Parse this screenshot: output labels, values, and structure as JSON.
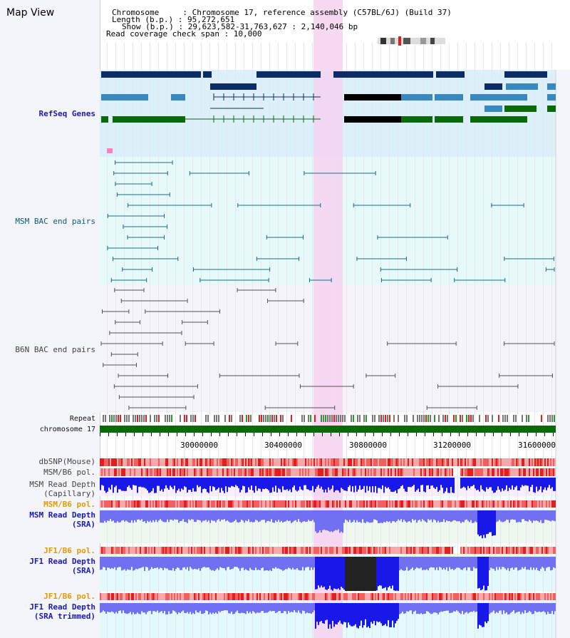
{
  "view": {
    "title": "Map View"
  },
  "info": {
    "chromosome": "Chromosome     : Chromosome 17, reference assembly (C57BL/6J) (Build 37)",
    "length": "Length (b.p.) : 95,272,651",
    "show": "Show (b.p.) : 29,623,582-31,763,627 : 2,140,046 bp",
    "coverage": "Read coverage check span : 10,000"
  },
  "tracks": {
    "refseq": "RefSeq Genes",
    "msm_bac": "MSM BAC end pairs",
    "b6n_bac": "B6N BAC end pairs",
    "repeat": "Repeat",
    "chromosome": "chromosome 17",
    "dbsnp": "dbSNP(Mouse)",
    "msm_pol_1": "MSM/B6 pol.",
    "msm_depth_cap": "MSM Read Depth\n(Capillary)",
    "msm_pol_2": "MSM/B6 pol.",
    "msm_depth_sra": "MSM Read Depth\n(SRA)",
    "jf1_pol_1": "JF1/B6 pol.",
    "jf1_depth_sra": "JF1 Read Depth\n(SRA)",
    "jf1_pol_2": "JF1/B6 pol.",
    "jf1_depth_trim": "JF1 Read Depth\n(SRA trimmed)"
  },
  "axis": {
    "ticks": [
      "30000000",
      "30400000",
      "30800000",
      "31200000",
      "31600000"
    ]
  },
  "colors": {
    "highlight": "#f6d2f0",
    "refseq_bg": "#dcf0fa",
    "msm_bg": "#e6fafa",
    "b6n_bg": "#f4f4fa",
    "depth_blue": "#1818e8",
    "depth_light": "#7070f0",
    "chromosome_bar": "#0a6a0a"
  }
}
